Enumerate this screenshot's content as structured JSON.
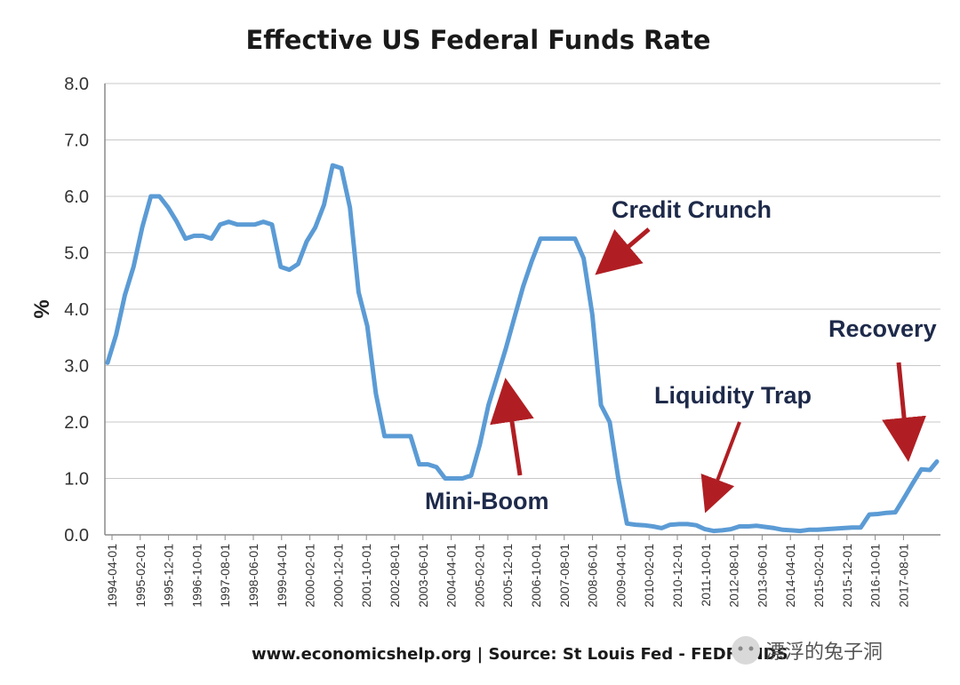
{
  "chart_data": {
    "type": "line",
    "title": "Effective US  Federal Funds Rate",
    "xlabel": "",
    "ylabel": "%",
    "ylim": [
      0,
      8
    ],
    "yticks": [
      "0.0",
      "1.0",
      "2.0",
      "3.0",
      "4.0",
      "5.0",
      "6.0",
      "7.0",
      "8.0"
    ],
    "grid": true,
    "xticks": [
      "1994-04-01",
      "1995-02-01",
      "1995-12-01",
      "1996-10-01",
      "1997-08-01",
      "1998-06-01",
      "1999-04-01",
      "2000-02-01",
      "2000-12-01",
      "2001-10-01",
      "2002-08-01",
      "2003-06-01",
      "2004-04-01",
      "2005-02-01",
      "2005-12-01",
      "2006-10-01",
      "2007-08-01",
      "2008-06-01",
      "2009-04-01",
      "2010-02-01",
      "2010-12-01",
      "2011-10-01",
      "2012-08-01",
      "2013-06-01",
      "2014-04-01",
      "2015-02-01",
      "2015-12-01",
      "2016-10-01",
      "2017-08-01"
    ],
    "line_color": "#5b9bd5",
    "series": [
      {
        "name": "Effective Federal Funds Rate",
        "points": [
          [
            1994.0,
            3.05
          ],
          [
            1994.25,
            3.55
          ],
          [
            1994.5,
            4.25
          ],
          [
            1994.75,
            4.75
          ],
          [
            1995.0,
            5.45
          ],
          [
            1995.25,
            6.0
          ],
          [
            1995.5,
            6.0
          ],
          [
            1995.75,
            5.8
          ],
          [
            1996.0,
            5.55
          ],
          [
            1996.25,
            5.25
          ],
          [
            1996.5,
            5.3
          ],
          [
            1996.75,
            5.3
          ],
          [
            1997.0,
            5.25
          ],
          [
            1997.25,
            5.5
          ],
          [
            1997.5,
            5.55
          ],
          [
            1997.75,
            5.5
          ],
          [
            1998.0,
            5.5
          ],
          [
            1998.25,
            5.5
          ],
          [
            1998.5,
            5.55
          ],
          [
            1998.75,
            5.5
          ],
          [
            1999.0,
            4.75
          ],
          [
            1999.25,
            4.7
          ],
          [
            1999.5,
            4.8
          ],
          [
            1999.75,
            5.2
          ],
          [
            2000.0,
            5.45
          ],
          [
            2000.25,
            5.85
          ],
          [
            2000.5,
            6.55
          ],
          [
            2000.75,
            6.5
          ],
          [
            2001.0,
            5.8
          ],
          [
            2001.25,
            4.3
          ],
          [
            2001.5,
            3.7
          ],
          [
            2001.75,
            2.5
          ],
          [
            2002.0,
            1.75
          ],
          [
            2002.25,
            1.75
          ],
          [
            2002.5,
            1.75
          ],
          [
            2002.75,
            1.75
          ],
          [
            2003.0,
            1.25
          ],
          [
            2003.25,
            1.25
          ],
          [
            2003.5,
            1.2
          ],
          [
            2003.75,
            1.0
          ],
          [
            2004.0,
            1.0
          ],
          [
            2004.25,
            1.0
          ],
          [
            2004.5,
            1.05
          ],
          [
            2004.75,
            1.6
          ],
          [
            2005.0,
            2.3
          ],
          [
            2005.25,
            2.8
          ],
          [
            2005.5,
            3.3
          ],
          [
            2005.75,
            3.85
          ],
          [
            2006.0,
            4.4
          ],
          [
            2006.25,
            4.85
          ],
          [
            2006.5,
            5.25
          ],
          [
            2006.75,
            5.25
          ],
          [
            2007.0,
            5.25
          ],
          [
            2007.25,
            5.25
          ],
          [
            2007.5,
            5.25
          ],
          [
            2007.75,
            4.9
          ],
          [
            2008.0,
            3.9
          ],
          [
            2008.25,
            2.3
          ],
          [
            2008.5,
            2.0
          ],
          [
            2008.75,
            1.0
          ],
          [
            2009.0,
            0.2
          ],
          [
            2009.25,
            0.18
          ],
          [
            2009.5,
            0.17
          ],
          [
            2009.75,
            0.15
          ],
          [
            2010.0,
            0.12
          ],
          [
            2010.25,
            0.18
          ],
          [
            2010.5,
            0.19
          ],
          [
            2010.75,
            0.19
          ],
          [
            2011.0,
            0.17
          ],
          [
            2011.25,
            0.1
          ],
          [
            2011.5,
            0.07
          ],
          [
            2011.75,
            0.08
          ],
          [
            2012.0,
            0.1
          ],
          [
            2012.25,
            0.15
          ],
          [
            2012.5,
            0.15
          ],
          [
            2012.75,
            0.16
          ],
          [
            2013.0,
            0.14
          ],
          [
            2013.25,
            0.12
          ],
          [
            2013.5,
            0.09
          ],
          [
            2013.75,
            0.08
          ],
          [
            2014.0,
            0.07
          ],
          [
            2014.25,
            0.09
          ],
          [
            2014.5,
            0.09
          ],
          [
            2014.75,
            0.1
          ],
          [
            2015.0,
            0.11
          ],
          [
            2015.25,
            0.12
          ],
          [
            2015.5,
            0.13
          ],
          [
            2015.75,
            0.13
          ],
          [
            2016.0,
            0.36
          ],
          [
            2016.25,
            0.37
          ],
          [
            2016.5,
            0.39
          ],
          [
            2016.75,
            0.4
          ],
          [
            2017.0,
            0.65
          ],
          [
            2017.25,
            0.91
          ],
          [
            2017.5,
            1.16
          ],
          [
            2017.75,
            1.15
          ],
          [
            2017.95,
            1.3
          ]
        ]
      }
    ],
    "annotations": [
      {
        "text": "Credit Crunch"
      },
      {
        "text": "Mini-Boom"
      },
      {
        "text": "Liquidity Trap"
      },
      {
        "text": "Recovery"
      }
    ],
    "source": "www.economicshelp.org | Source: St Louis Fed - FEDFUNDS",
    "watermark": "漂浮的兔子洞",
    "arrow_color": "#b01e23"
  }
}
